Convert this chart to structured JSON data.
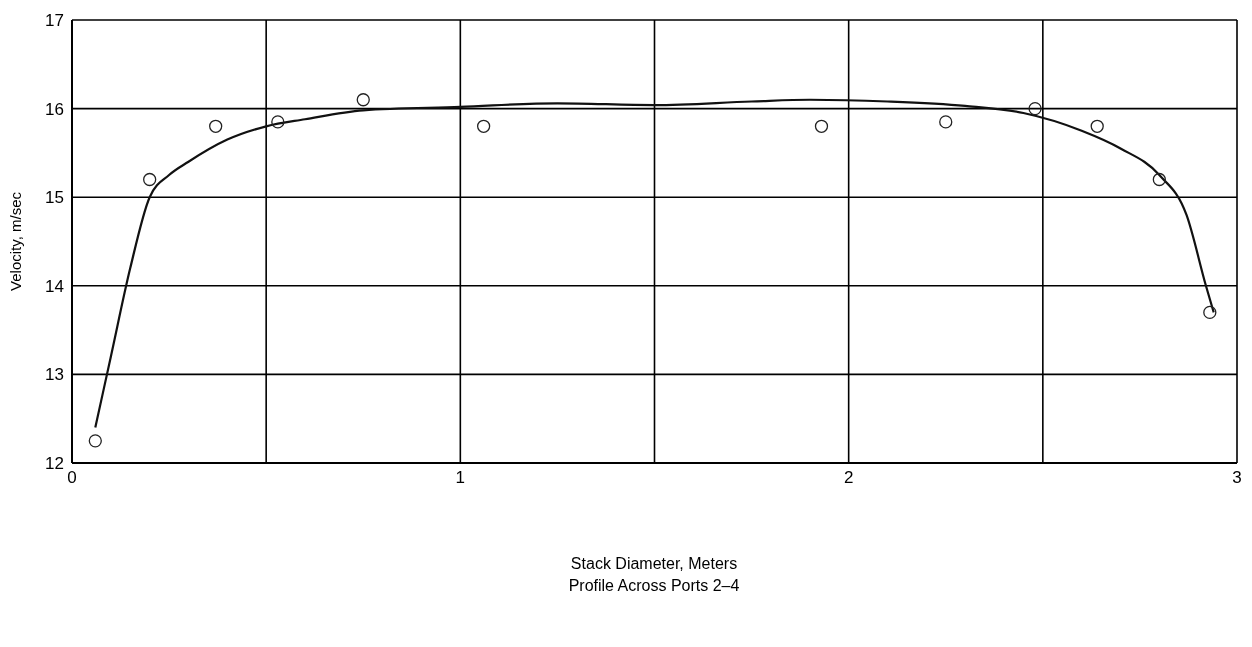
{
  "chart_data": {
    "type": "scatter",
    "xlabel": "Stack Diameter, Meters",
    "ylabel": "Velocity, m/sec",
    "annotations": [
      "Profile Across Ports 2–4"
    ],
    "xlim": [
      0,
      3
    ],
    "ylim": [
      12,
      17
    ],
    "xticks": [
      0,
      {
        "value": 0.5,
        "label": null
      },
      1,
      {
        "value": 1.5,
        "label": null
      },
      2,
      {
        "value": 2.5,
        "label": null
      },
      3
    ],
    "yticks": [
      12,
      13,
      14,
      15,
      16,
      17
    ],
    "grid": true,
    "marker": "circle",
    "series": [
      {
        "color": "#222222",
        "x": [
          0.06,
          0.2,
          0.37,
          0.53,
          0.75,
          1.06,
          1.93,
          2.25,
          2.48,
          2.64,
          2.8,
          2.93
        ],
        "values": [
          12.25,
          15.2,
          15.8,
          15.85,
          16.1,
          15.8,
          15.8,
          15.85,
          16.0,
          15.8,
          15.2,
          13.7
        ]
      },
      {
        "type": "line",
        "color": "#111111",
        "marker": "none",
        "x": [
          0.06,
          0.1,
          0.15,
          0.2,
          0.25,
          0.3,
          0.4,
          0.5,
          0.6,
          0.75,
          1.0,
          1.25,
          1.5,
          1.75,
          1.9,
          2.1,
          2.3,
          2.45,
          2.6,
          2.7,
          2.8,
          2.87,
          2.92,
          2.94
        ],
        "values": [
          12.4,
          13.2,
          14.2,
          15.0,
          15.25,
          15.4,
          15.65,
          15.8,
          15.88,
          15.98,
          16.02,
          16.06,
          16.04,
          16.08,
          16.1,
          16.08,
          16.03,
          15.95,
          15.75,
          15.55,
          15.25,
          14.8,
          14.0,
          13.7
        ]
      }
    ]
  }
}
